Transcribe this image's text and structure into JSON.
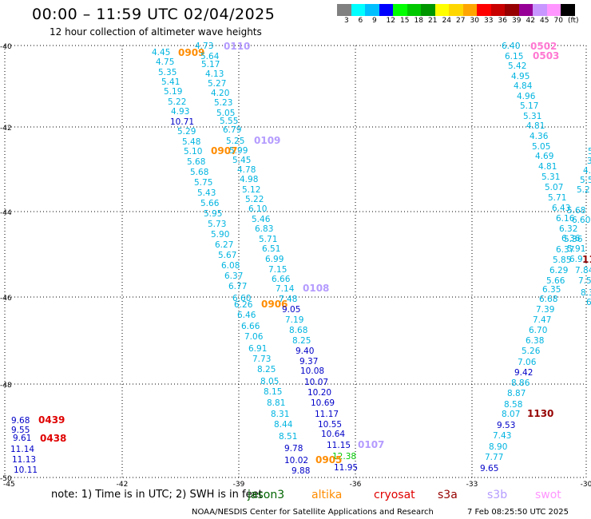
{
  "title": "00:00 – 11:59 UTC 02/04/2025",
  "subtitle": "12 hour collection of altimeter wave heights",
  "legend": {
    "unit": "(ft)",
    "colors": [
      "#808080",
      "#00ffff",
      "#00bfff",
      "#0000ff",
      "#00ff00",
      "#00c800",
      "#009600",
      "#ffff00",
      "#ffd700",
      "#ffa500",
      "#ff0000",
      "#c80000",
      "#960000",
      "#960096",
      "#c896ff",
      "#ff96ff",
      "#000000"
    ],
    "labels": [
      "3",
      "6",
      "9",
      "12",
      "15",
      "18",
      "21",
      "24",
      "27",
      "30",
      "33",
      "36",
      "39",
      "42",
      "45",
      "70"
    ]
  },
  "axes": {
    "lat_labels": [
      "-40",
      "-42",
      "-44",
      "-46",
      "-48",
      "-50"
    ],
    "lon_labels": [
      "-45",
      "-42",
      "-39",
      "-36",
      "-33",
      "-30"
    ]
  },
  "colors": {
    "cyan": "#00b4e0",
    "blue": "#0000c8",
    "orange": "#ff8c00",
    "lavender": "#b49bff",
    "pink": "#ff78d2",
    "red": "#e00000",
    "darkred": "#960000",
    "green": "#00c800"
  },
  "observations": [
    {
      "text": "4.73",
      "c": "cyan"
    },
    {
      "text": "0110",
      "c": "lavender",
      "p": 1
    },
    {
      "text": "4.45",
      "c": "cyan"
    },
    {
      "text": "0909",
      "c": "orange",
      "p": 1
    },
    {
      "text": "5.64",
      "c": "cyan"
    },
    {
      "text": "4.75",
      "c": "cyan"
    },
    {
      "text": "5.17",
      "c": "cyan"
    },
    {
      "text": "5.35",
      "c": "cyan"
    },
    {
      "text": "4.13",
      "c": "cyan"
    },
    {
      "text": "5.41",
      "c": "cyan"
    },
    {
      "text": "5.27",
      "c": "cyan"
    },
    {
      "text": "5.19",
      "c": "cyan"
    },
    {
      "text": "4.20",
      "c": "cyan"
    },
    {
      "text": "5.22",
      "c": "cyan"
    },
    {
      "text": "5.23",
      "c": "cyan"
    },
    {
      "text": "4.93",
      "c": "cyan"
    },
    {
      "text": "5.05",
      "c": "cyan"
    },
    {
      "text": "10.71",
      "c": "blue"
    },
    {
      "text": "5.55",
      "c": "cyan"
    },
    {
      "text": "5.29",
      "c": "cyan"
    },
    {
      "text": "6.79",
      "c": "cyan"
    },
    {
      "text": "5.48",
      "c": "cyan"
    },
    {
      "text": "5.25",
      "c": "cyan"
    },
    {
      "text": "0109",
      "c": "lavender",
      "p": 1
    },
    {
      "text": "5.10",
      "c": "cyan"
    },
    {
      "text": "0907",
      "c": "orange",
      "p": 1
    },
    {
      "text": "5.99",
      "c": "cyan"
    },
    {
      "text": "5.68",
      "c": "cyan"
    },
    {
      "text": "5.45",
      "c": "cyan"
    },
    {
      "text": "5.68",
      "c": "cyan"
    },
    {
      "text": "4.78",
      "c": "cyan"
    },
    {
      "text": "5.75",
      "c": "cyan"
    },
    {
      "text": "4.98",
      "c": "cyan"
    },
    {
      "text": "5.43",
      "c": "cyan"
    },
    {
      "text": "5.12",
      "c": "cyan"
    },
    {
      "text": "5.22",
      "c": "cyan"
    },
    {
      "text": "5.66",
      "c": "cyan"
    },
    {
      "text": "6.10",
      "c": "cyan"
    },
    {
      "text": "5.95",
      "c": "cyan"
    },
    {
      "text": "5.46",
      "c": "cyan"
    },
    {
      "text": "5.73",
      "c": "cyan"
    },
    {
      "text": "6.83",
      "c": "cyan"
    },
    {
      "text": "5.90",
      "c": "cyan"
    },
    {
      "text": "5.71",
      "c": "cyan"
    },
    {
      "text": "6.27",
      "c": "cyan"
    },
    {
      "text": "6.51",
      "c": "cyan"
    },
    {
      "text": "5.67",
      "c": "cyan"
    },
    {
      "text": "6.99",
      "c": "cyan"
    },
    {
      "text": "6.08",
      "c": "cyan"
    },
    {
      "text": "7.15",
      "c": "cyan"
    },
    {
      "text": "6.37",
      "c": "cyan"
    },
    {
      "text": "6.66",
      "c": "cyan"
    },
    {
      "text": "6.77",
      "c": "cyan"
    },
    {
      "text": "7.14",
      "c": "cyan"
    },
    {
      "text": "0108",
      "c": "lavender",
      "p": 1
    },
    {
      "text": "6.60",
      "c": "cyan"
    },
    {
      "text": "7.48",
      "c": "cyan"
    },
    {
      "text": "6.26",
      "c": "cyan"
    },
    {
      "text": "0906",
      "c": "orange",
      "p": 1
    },
    {
      "text": "9.05",
      "c": "blue"
    },
    {
      "text": "6.46",
      "c": "cyan"
    },
    {
      "text": "7.19",
      "c": "cyan"
    },
    {
      "text": "6.66",
      "c": "cyan"
    },
    {
      "text": "8.68",
      "c": "cyan"
    },
    {
      "text": "7.06",
      "c": "cyan"
    },
    {
      "text": "8.25",
      "c": "cyan"
    },
    {
      "text": "6.91",
      "c": "cyan"
    },
    {
      "text": "9.40",
      "c": "blue"
    },
    {
      "text": "7.73",
      "c": "cyan"
    },
    {
      "text": "9.37",
      "c": "blue"
    },
    {
      "text": "8.25",
      "c": "cyan"
    },
    {
      "text": "10.08",
      "c": "blue"
    },
    {
      "text": "8.05",
      "c": "cyan"
    },
    {
      "text": "10.07",
      "c": "blue"
    },
    {
      "text": "8.15",
      "c": "cyan"
    },
    {
      "text": "10.20",
      "c": "blue"
    },
    {
      "text": "8.81",
      "c": "cyan"
    },
    {
      "text": "10.69",
      "c": "blue"
    },
    {
      "text": "8.31",
      "c": "cyan"
    },
    {
      "text": "11.17",
      "c": "blue"
    },
    {
      "text": "8.44",
      "c": "cyan"
    },
    {
      "text": "10.55",
      "c": "blue"
    },
    {
      "text": "8.51",
      "c": "cyan"
    },
    {
      "text": "10.64",
      "c": "blue"
    },
    {
      "text": "9.78",
      "c": "blue"
    },
    {
      "text": "11.15",
      "c": "blue"
    },
    {
      "text": "0107",
      "c": "lavender",
      "p": 1
    },
    {
      "text": "12.38",
      "c": "green"
    },
    {
      "text": "10.02",
      "c": "blue"
    },
    {
      "text": "0905",
      "c": "orange",
      "p": 1
    },
    {
      "text": "9.88",
      "c": "blue"
    },
    {
      "text": "11.95",
      "c": "blue"
    },
    {
      "text": "9.68",
      "c": "blue"
    },
    {
      "text": "0439",
      "c": "red",
      "p": 1
    },
    {
      "text": "9.55",
      "c": "blue"
    },
    {
      "text": "9.61",
      "c": "blue"
    },
    {
      "text": "0438",
      "c": "red",
      "p": 1
    },
    {
      "text": "11.14",
      "c": "blue"
    },
    {
      "text": "11.13",
      "c": "blue"
    },
    {
      "text": "10.11",
      "c": "blue"
    },
    {
      "text": "6.40",
      "c": "cyan"
    },
    {
      "text": "0502",
      "c": "pink",
      "p": 1
    },
    {
      "text": "6.15",
      "c": "cyan"
    },
    {
      "text": "0503",
      "c": "pink",
      "p": 1
    },
    {
      "text": "5.42",
      "c": "cyan"
    },
    {
      "text": "4.95",
      "c": "cyan"
    },
    {
      "text": "4.84",
      "c": "cyan"
    },
    {
      "text": "4.96",
      "c": "cyan"
    },
    {
      "text": "5.17",
      "c": "cyan"
    },
    {
      "text": "5.31",
      "c": "cyan"
    },
    {
      "text": "4.81",
      "c": "cyan"
    },
    {
      "text": "4.36",
      "c": "cyan"
    },
    {
      "text": "5.05",
      "c": "cyan"
    },
    {
      "text": "4.69",
      "c": "cyan"
    },
    {
      "text": "4.81",
      "c": "cyan"
    },
    {
      "text": "5.31",
      "c": "cyan"
    },
    {
      "text": "5.07",
      "c": "cyan"
    },
    {
      "text": "5.71",
      "c": "cyan"
    },
    {
      "text": "6.43",
      "c": "cyan"
    },
    {
      "text": "5.68",
      "c": "cyan"
    },
    {
      "text": "6.16",
      "c": "cyan"
    },
    {
      "text": "6.60",
      "c": "cyan"
    },
    {
      "text": "6.32",
      "c": "cyan"
    },
    {
      "text": "5.36",
      "c": "cyan"
    },
    {
      "text": "6.36",
      "c": "cyan"
    },
    {
      "text": "6.37",
      "c": "cyan"
    },
    {
      "text": "5.91",
      "c": "cyan"
    },
    {
      "text": "5.85",
      "c": "cyan"
    },
    {
      "text": "6.91",
      "c": "cyan"
    },
    {
      "text": "6.29",
      "c": "cyan"
    },
    {
      "text": "7.84",
      "c": "cyan"
    },
    {
      "text": "5.66",
      "c": "cyan"
    },
    {
      "text": "7.53",
      "c": "cyan"
    },
    {
      "text": "6.35",
      "c": "cyan"
    },
    {
      "text": "8.3",
      "c": "cyan"
    },
    {
      "text": "6.68",
      "c": "cyan"
    },
    {
      "text": "7.39",
      "c": "cyan"
    },
    {
      "text": "7.47",
      "c": "cyan"
    },
    {
      "text": "6.70",
      "c": "cyan"
    },
    {
      "text": "6.38",
      "c": "cyan"
    },
    {
      "text": "5.26",
      "c": "cyan"
    },
    {
      "text": "7.06",
      "c": "cyan"
    },
    {
      "text": "9.42",
      "c": "blue"
    },
    {
      "text": "8.86",
      "c": "cyan"
    },
    {
      "text": "8.87",
      "c": "cyan"
    },
    {
      "text": "8.58",
      "c": "cyan"
    },
    {
      "text": "8.07",
      "c": "cyan"
    },
    {
      "text": "1130",
      "c": "darkred",
      "p": 1
    },
    {
      "text": "9.53",
      "c": "blue"
    },
    {
      "text": "7.43",
      "c": "cyan"
    },
    {
      "text": "8.90",
      "c": "cyan"
    },
    {
      "text": "7.77",
      "c": "cyan"
    },
    {
      "text": "9.65",
      "c": "blue"
    },
    {
      "text": "5",
      "c": "cyan"
    },
    {
      "text": "3",
      "c": "cyan"
    },
    {
      "text": "4.",
      "c": "cyan"
    },
    {
      "text": "5.5",
      "c": "cyan"
    },
    {
      "text": "5.2",
      "c": "cyan"
    },
    {
      "text": "07",
      "c": "pink",
      "p": 1
    },
    {
      "text": "11",
      "c": "darkred",
      "p": 1
    },
    {
      "text": "6.",
      "c": "cyan"
    }
  ],
  "note": "note:  1) Time is in UTC; 2) SWH is in feet",
  "satellites": [
    {
      "name": "jason3",
      "color": "#006400"
    },
    {
      "name": "altika",
      "color": "#ff8c00"
    },
    {
      "name": "cryosat",
      "color": "#e00000"
    },
    {
      "name": "s3a",
      "color": "#960000"
    },
    {
      "name": "s3b",
      "color": "#b49bff"
    },
    {
      "name": "swot",
      "color": "#ff96ff"
    }
  ],
  "credit": "NOAA/NESDIS Center for Satellite Applications and Research",
  "timestamp": "7 Feb 08:25:50 UTC 2025"
}
